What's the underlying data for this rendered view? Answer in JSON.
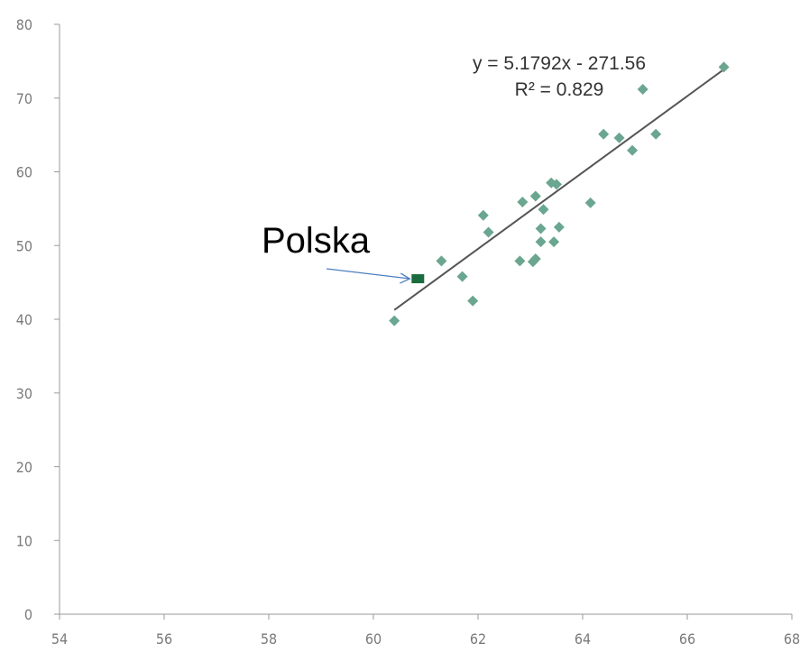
{
  "chart_data": {
    "type": "scatter",
    "xlim": [
      54,
      68
    ],
    "ylim": [
      0,
      80
    ],
    "x_ticks": [
      54,
      56,
      58,
      60,
      62,
      64,
      66,
      68
    ],
    "y_ticks": [
      0,
      10,
      20,
      30,
      40,
      50,
      60,
      70,
      80
    ],
    "grid": false,
    "points": [
      {
        "x": 60.4,
        "y": 39.8
      },
      {
        "x": 61.3,
        "y": 47.9
      },
      {
        "x": 61.7,
        "y": 45.8
      },
      {
        "x": 61.9,
        "y": 42.5
      },
      {
        "x": 62.1,
        "y": 54.1
      },
      {
        "x": 62.2,
        "y": 51.8
      },
      {
        "x": 62.8,
        "y": 47.9
      },
      {
        "x": 62.85,
        "y": 55.9
      },
      {
        "x": 63.05,
        "y": 47.8
      },
      {
        "x": 63.1,
        "y": 48.2
      },
      {
        "x": 63.1,
        "y": 56.7
      },
      {
        "x": 63.2,
        "y": 50.5
      },
      {
        "x": 63.2,
        "y": 52.3
      },
      {
        "x": 63.25,
        "y": 54.9
      },
      {
        "x": 63.4,
        "y": 58.5
      },
      {
        "x": 63.45,
        "y": 50.5
      },
      {
        "x": 63.5,
        "y": 58.3
      },
      {
        "x": 63.55,
        "y": 52.5
      },
      {
        "x": 64.15,
        "y": 55.8
      },
      {
        "x": 64.4,
        "y": 65.1
      },
      {
        "x": 64.7,
        "y": 64.6
      },
      {
        "x": 64.95,
        "y": 62.9
      },
      {
        "x": 65.15,
        "y": 71.2
      },
      {
        "x": 65.4,
        "y": 65.1
      },
      {
        "x": 66.7,
        "y": 74.2
      }
    ],
    "highlight": {
      "label": "Polska",
      "x": 60.85,
      "y": 45.5
    },
    "trendline": {
      "equation": "y = 5.1792x - 271.56",
      "r2": "R² = 0.829",
      "slope": 5.1792,
      "intercept": -271.56,
      "x_range": [
        60.4,
        66.7
      ]
    },
    "colors": {
      "points": "#6aa690",
      "highlight": "#1a6b3d",
      "trendline": "#555555",
      "arrow": "#4a7fc0"
    }
  }
}
